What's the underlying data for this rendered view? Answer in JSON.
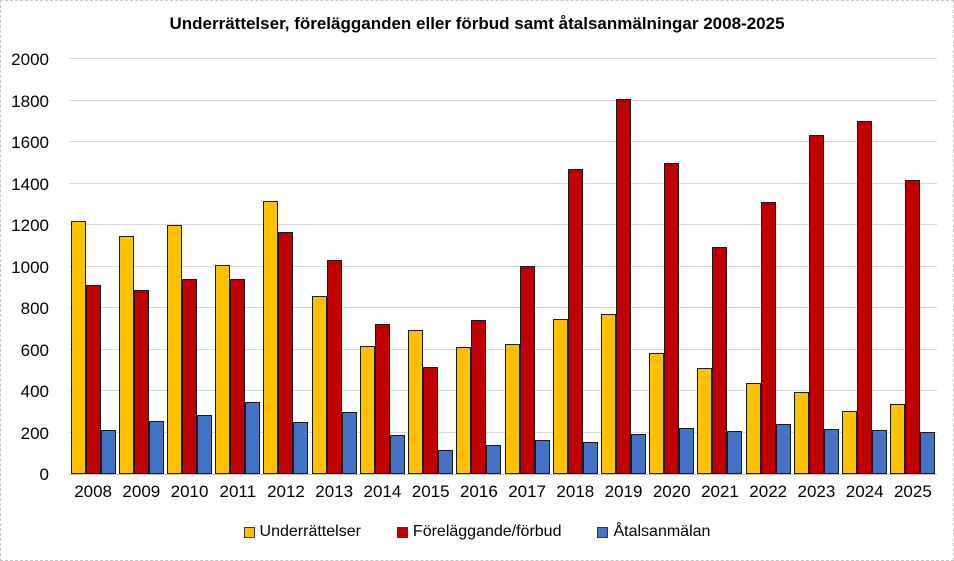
{
  "title": "Underrättelser, förelägganden eller förbud samt åtalsanmälningar 2008-2025",
  "colors": {
    "background": "#ffffff",
    "grid": "#d9d9d9",
    "axis_baseline": "#bfbfbf",
    "bar_border": "#1a1a1a",
    "text": "#000000"
  },
  "chart_data": {
    "type": "bar",
    "title": "Underrättelser, förelägganden eller förbud samt åtalsanmälningar 2008-2025",
    "categories": [
      "2008",
      "2009",
      "2010",
      "2011",
      "2012",
      "2013",
      "2014",
      "2015",
      "2016",
      "2017",
      "2018",
      "2019",
      "2020",
      "2021",
      "2022",
      "2023",
      "2024",
      "2025"
    ],
    "series": [
      {
        "name": "Underrättelser",
        "color": "#FFC000",
        "values": [
          1220,
          1145,
          1200,
          1005,
          1315,
          860,
          615,
          695,
          610,
          625,
          745,
          770,
          585,
          510,
          440,
          395,
          305,
          335
        ]
      },
      {
        "name": "Föreläggande/förbud",
        "color": "#C00000",
        "values": [
          910,
          885,
          940,
          940,
          1165,
          1030,
          725,
          515,
          740,
          1000,
          1470,
          1805,
          1500,
          1095,
          1310,
          1635,
          1700,
          1415
        ]
      },
      {
        "name": "Åtalsanmälan",
        "color": "#4472C4",
        "values": [
          210,
          255,
          285,
          345,
          250,
          300,
          190,
          115,
          140,
          165,
          155,
          195,
          220,
          205,
          240,
          215,
          210,
          200
        ]
      }
    ],
    "xlabel": "",
    "ylabel": "",
    "ylim": [
      0,
      2000
    ],
    "ytick_step": 200,
    "yticks": [
      0,
      200,
      400,
      600,
      800,
      1000,
      1200,
      1400,
      1600,
      1800,
      2000
    ],
    "grid": true,
    "legend_position": "bottom"
  }
}
